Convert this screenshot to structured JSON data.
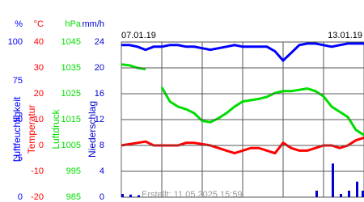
{
  "chart_data": {
    "type": "line",
    "x_labels": [
      "07.01.19",
      "13.01.19"
    ],
    "footer": "Erstellt: 11.05.2025 15:59",
    "axes": [
      {
        "unit": "%",
        "label": "Luftfeuchtigkeit",
        "color": "#0000ff",
        "mark": "line",
        "ylim": [
          0,
          100
        ],
        "yticks": [
          100,
          75,
          50,
          25,
          0
        ],
        "values": [
          98,
          98,
          97,
          95,
          97,
          97,
          98,
          98,
          97,
          97,
          96,
          95,
          96,
          97,
          98,
          97,
          97,
          97,
          97,
          94,
          88,
          93,
          98,
          99,
          99,
          98,
          97,
          98,
          99,
          99,
          99
        ]
      },
      {
        "unit": "°C",
        "label": "Temperatur",
        "color": "#ff0000",
        "mark": "line",
        "ylim": [
          -20,
          40
        ],
        "yticks": [
          40,
          30,
          20,
          10,
          0,
          -10,
          -20
        ],
        "values": [
          0,
          0.5,
          1,
          1.5,
          0,
          0,
          0,
          0,
          1,
          1,
          0.5,
          0,
          -1,
          -2,
          -3,
          -2,
          -1,
          -1,
          -2,
          -3,
          1,
          -1,
          -2,
          -2,
          -1,
          0,
          0,
          -1,
          0,
          2,
          3
        ]
      },
      {
        "unit": "hPa",
        "label": "Luftdruck",
        "color": "#00dd00",
        "mark": "line",
        "ylim": [
          985,
          1045
        ],
        "yticks": [
          1045,
          1035,
          1025,
          1015,
          1005,
          995,
          985
        ],
        "values": [
          1036.3,
          1036,
          1035,
          1034.5,
          null,
          1027.5,
          1022,
          1020,
          1019,
          1017.5,
          1014.5,
          1014,
          1015.5,
          1017.5,
          1020,
          1022,
          1022.5,
          1023,
          1023.8,
          1025.3,
          1026,
          1026,
          1026.5,
          1027,
          1026,
          1024,
          1020,
          1018,
          1016,
          1011,
          1009
        ]
      },
      {
        "unit": "mm/h",
        "label": "Niederschlag",
        "color": "#0000cc",
        "mark": "bar",
        "ylim": [
          0,
          24
        ],
        "yticks": [
          24,
          20,
          16,
          12,
          8,
          4,
          0
        ],
        "values": [
          0.5,
          0.4,
          0.3,
          0,
          0,
          0,
          0,
          0,
          0,
          0,
          0,
          0,
          0,
          0,
          0,
          0,
          0,
          0,
          0,
          0,
          0,
          0,
          0,
          0,
          1,
          0,
          5.2,
          0.5,
          1,
          2.4,
          1
        ]
      }
    ]
  }
}
